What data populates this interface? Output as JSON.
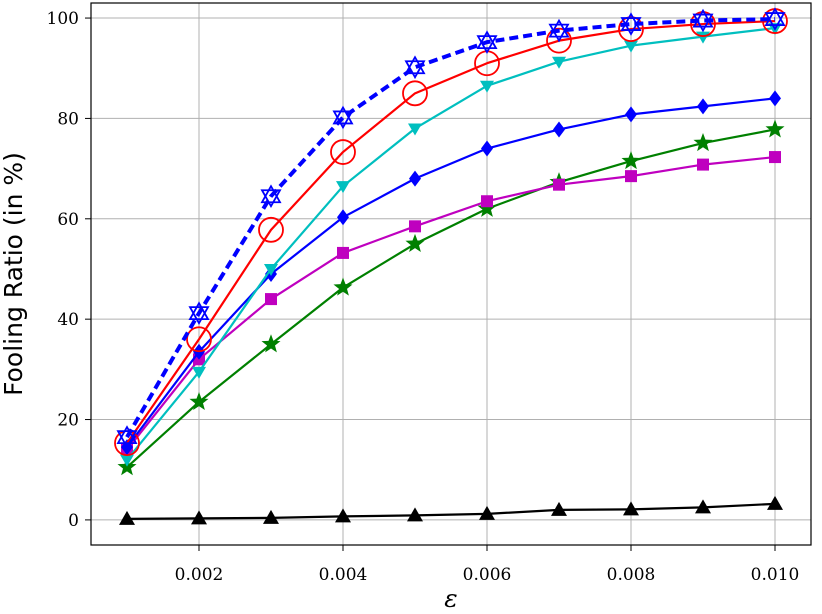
{
  "chart_data": {
    "type": "line",
    "title": "",
    "xlabel": "ε",
    "ylabel": "Fooling Ratio (in %)",
    "xlim": [
      0.0005,
      0.0105
    ],
    "ylim": [
      -5,
      103
    ],
    "grid": true,
    "x": [
      0.001,
      0.002,
      0.003,
      0.004,
      0.005,
      0.006,
      0.007,
      0.008,
      0.009,
      0.01
    ],
    "x_ticks": [
      0.002,
      0.004,
      0.006,
      0.008,
      0.01
    ],
    "x_tick_labels": [
      "0.002",
      "0.004",
      "0.006",
      "0.008",
      "0.010"
    ],
    "y_ticks": [
      0,
      20,
      40,
      60,
      80,
      100
    ],
    "y_tick_labels": [
      "0",
      "20",
      "40",
      "60",
      "80",
      "100"
    ],
    "series": [
      {
        "color": "#000000",
        "marker": "triangle-up",
        "dash": false,
        "values": [
          0.2,
          0.3,
          0.4,
          0.7,
          0.9,
          1.2,
          2.0,
          2.1,
          2.5,
          3.2
        ]
      },
      {
        "color": "#008000",
        "marker": "star",
        "dash": false,
        "values": [
          10.5,
          23.5,
          35.0,
          46.3,
          55.0,
          62.0,
          67.3,
          71.5,
          75.1,
          77.8
        ]
      },
      {
        "color": "#bf00bf",
        "marker": "square",
        "dash": false,
        "values": [
          14.0,
          32.0,
          44.0,
          53.2,
          58.5,
          63.5,
          66.8,
          68.5,
          70.8,
          72.3
        ]
      },
      {
        "color": "#0000ff",
        "marker": "diamond",
        "dash": false,
        "values": [
          14.5,
          33.5,
          49.0,
          60.3,
          68.0,
          74.0,
          77.8,
          80.8,
          82.4,
          84.0
        ]
      },
      {
        "color": "#00bfbf",
        "marker": "triangle-down",
        "dash": false,
        "values": [
          12.0,
          29.5,
          50.0,
          66.5,
          78.0,
          86.5,
          91.3,
          94.5,
          96.3,
          98.0
        ]
      },
      {
        "color": "#ff0000",
        "marker": "circle-open",
        "dash": false,
        "values": [
          15.3,
          36.0,
          57.8,
          73.3,
          85.0,
          91.0,
          95.5,
          97.8,
          98.8,
          99.4
        ]
      },
      {
        "color": "#0000ff",
        "marker": "star-open",
        "dash": true,
        "values": [
          16.5,
          41.2,
          64.5,
          80.2,
          90.2,
          95.2,
          97.5,
          98.8,
          99.5,
          99.8
        ]
      }
    ]
  }
}
